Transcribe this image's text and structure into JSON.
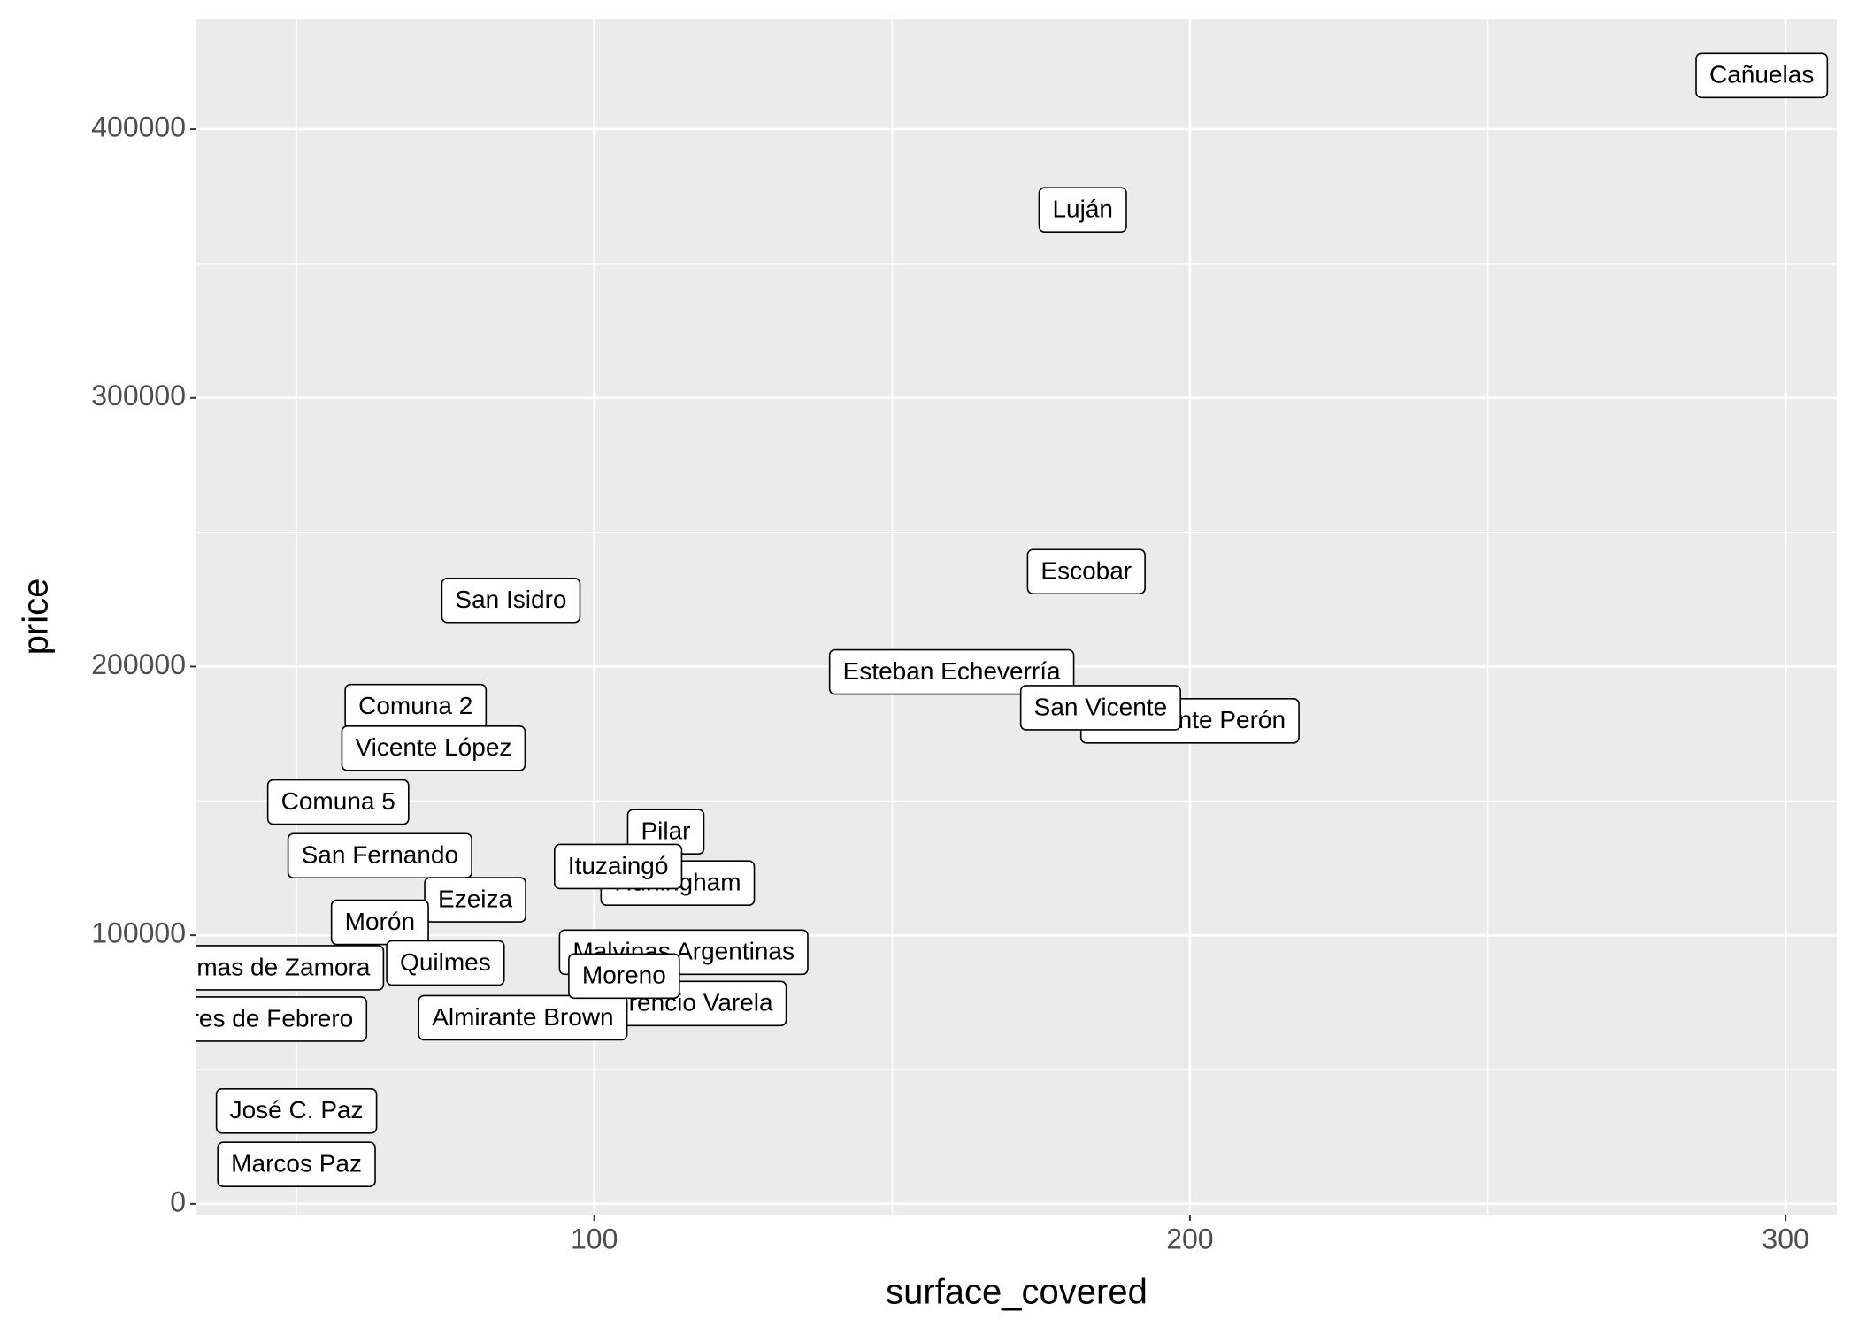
{
  "chart_data": {
    "type": "label-scatter",
    "x_label": "surface_covered",
    "y_label": "price",
    "xlim": [
      33.2,
      308.6
    ],
    "ylim": [
      -4000,
      440850
    ],
    "xticks": [
      100,
      200,
      300
    ],
    "yticks": [
      0,
      100000,
      200000,
      300000,
      400000
    ],
    "grid": true,
    "panel_color": "#ebebeb",
    "labels": [
      "Cañuelas",
      "Luján",
      "Escobar",
      "San Isidro",
      "Esteban Echeverría",
      "Presidente Perón",
      "San Vicente",
      "Comuna 2",
      "Vicente López",
      "Comuna 5",
      "Pilar",
      "San Fernando",
      "Hurlingham",
      "Ituzaingó",
      "Ezeiza",
      "Morón",
      "Malvinas Argentinas",
      "Florencio Varela",
      "Almirante Brown",
      "Moreno",
      "Lomas de Zamora",
      "Quilmes",
      "Tres de Febrero",
      "José C. Paz",
      "Marcos Paz"
    ],
    "x": [
      296,
      182,
      182.6,
      86,
      160,
      200,
      185,
      70,
      73,
      57,
      112,
      64,
      114,
      104,
      80,
      64,
      115,
      115,
      88,
      105,
      45.5,
      75,
      44.7,
      50,
      50
    ],
    "y": [
      420000,
      370000,
      235300,
      224600,
      198000,
      179800,
      184700,
      185100,
      169600,
      149600,
      138500,
      129600,
      119400,
      125600,
      113200,
      104800,
      93700,
      74600,
      69300,
      84800,
      87900,
      89700,
      68800,
      34600,
      14700
    ]
  }
}
